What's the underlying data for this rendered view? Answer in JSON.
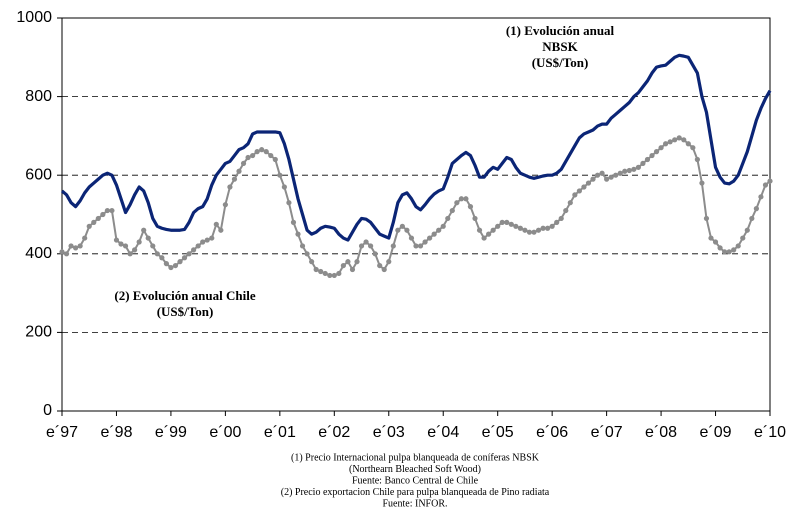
{
  "chart_data": {
    "type": "line",
    "categories": [
      "e´97",
      null,
      null,
      null,
      null,
      null,
      null,
      null,
      null,
      null,
      null,
      null,
      "e´98",
      null,
      null,
      null,
      null,
      null,
      null,
      null,
      null,
      null,
      null,
      null,
      "e´99",
      null,
      null,
      null,
      null,
      null,
      null,
      null,
      null,
      null,
      null,
      null,
      "e´00",
      null,
      null,
      null,
      null,
      null,
      null,
      null,
      null,
      null,
      null,
      null,
      "e´01",
      null,
      null,
      null,
      null,
      null,
      null,
      null,
      null,
      null,
      null,
      null,
      "e´02",
      null,
      null,
      null,
      null,
      null,
      null,
      null,
      null,
      null,
      null,
      null,
      "e´03",
      null,
      null,
      null,
      null,
      null,
      null,
      null,
      null,
      null,
      null,
      null,
      "e´04",
      null,
      null,
      null,
      null,
      null,
      null,
      null,
      null,
      null,
      null,
      null,
      "e´05",
      null,
      null,
      null,
      null,
      null,
      null,
      null,
      null,
      null,
      null,
      null,
      "e´06",
      null,
      null,
      null,
      null,
      null,
      null,
      null,
      null,
      null,
      null,
      null,
      "e´07",
      null,
      null,
      null,
      null,
      null,
      null,
      null,
      null,
      null,
      null,
      null,
      "e´08",
      null,
      null,
      null,
      null,
      null,
      null,
      null,
      null,
      null,
      null,
      null,
      "e´09",
      null,
      null,
      null,
      null,
      null,
      null,
      null,
      null,
      null,
      null,
      null,
      "e´10"
    ],
    "series": [
      {
        "name": "NBSK",
        "color": "#0b2576",
        "marker": false,
        "values": [
          560,
          550,
          530,
          520,
          535,
          555,
          570,
          580,
          590,
          600,
          605,
          600,
          575,
          540,
          505,
          525,
          550,
          570,
          560,
          530,
          490,
          470,
          465,
          462,
          460,
          460,
          460,
          462,
          480,
          505,
          515,
          520,
          540,
          575,
          600,
          615,
          630,
          635,
          650,
          665,
          670,
          680,
          705,
          710,
          710,
          710,
          710,
          710,
          708,
          680,
          640,
          590,
          540,
          500,
          460,
          450,
          455,
          465,
          470,
          468,
          465,
          450,
          440,
          435,
          455,
          475,
          490,
          488,
          480,
          465,
          450,
          445,
          440,
          480,
          530,
          550,
          555,
          540,
          520,
          512,
          525,
          540,
          552,
          560,
          565,
          595,
          630,
          640,
          650,
          658,
          650,
          625,
          595,
          595,
          610,
          620,
          615,
          630,
          645,
          640,
          620,
          605,
          600,
          595,
          592,
          595,
          598,
          600,
          600,
          605,
          615,
          635,
          655,
          675,
          695,
          705,
          710,
          715,
          725,
          730,
          730,
          745,
          755,
          765,
          775,
          785,
          800,
          810,
          825,
          840,
          860,
          875,
          878,
          880,
          890,
          900,
          905,
          903,
          900,
          880,
          860,
          800,
          760,
          690,
          620,
          595,
          580,
          578,
          585,
          600,
          630,
          660,
          700,
          740,
          770,
          795,
          815
        ]
      },
      {
        "name": "Chile",
        "color": "#8c8c8c",
        "marker": true,
        "values": [
          405,
          400,
          420,
          415,
          420,
          440,
          470,
          480,
          490,
          500,
          510,
          510,
          435,
          425,
          420,
          400,
          410,
          430,
          460,
          440,
          420,
          400,
          390,
          375,
          365,
          370,
          380,
          390,
          400,
          410,
          420,
          430,
          435,
          440,
          475,
          460,
          525,
          570,
          590,
          610,
          630,
          645,
          650,
          660,
          665,
          660,
          650,
          640,
          600,
          570,
          530,
          480,
          450,
          420,
          400,
          380,
          360,
          355,
          350,
          345,
          345,
          350,
          370,
          380,
          360,
          380,
          420,
          430,
          420,
          400,
          370,
          360,
          380,
          420,
          460,
          470,
          460,
          440,
          420,
          420,
          430,
          440,
          450,
          460,
          470,
          490,
          510,
          530,
          540,
          540,
          520,
          490,
          460,
          440,
          450,
          460,
          470,
          480,
          480,
          475,
          470,
          465,
          460,
          455,
          455,
          460,
          465,
          465,
          470,
          480,
          490,
          510,
          530,
          550,
          560,
          570,
          580,
          590,
          600,
          605,
          590,
          595,
          600,
          605,
          610,
          612,
          615,
          620,
          630,
          640,
          650,
          660,
          670,
          680,
          685,
          690,
          695,
          690,
          680,
          670,
          640,
          580,
          490,
          440,
          430,
          415,
          405,
          405,
          410,
          420,
          440,
          460,
          490,
          515,
          545,
          575,
          585
        ]
      }
    ],
    "ylim": [
      0,
      1000
    ],
    "yticks": [
      0,
      200,
      400,
      600,
      800,
      1000
    ],
    "grid": true,
    "annotations": [
      {
        "lines": [
          "(1) Evolución anual",
          "NBSK",
          "(US$/Ton)"
        ]
      },
      {
        "lines": [
          "(2) Evolución anual Chile",
          "(US$/Ton)"
        ]
      }
    ],
    "footnotes": [
      "(1) Precio Internacional pulpa blanqueada de coníferas NBSK",
      "(Northearn Bleached Soft Wood)",
      "Fuente: Banco Central de Chile",
      "(2) Precio exportacion Chile para pulpa blanqueada de Pino radiata",
      "Fuente: INFOR."
    ]
  }
}
